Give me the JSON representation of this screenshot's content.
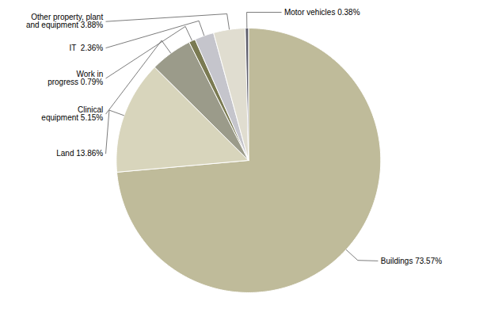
{
  "chart_data": {
    "type": "pie",
    "categories": [
      "Buildings",
      "Land",
      "Clinical equipment",
      "Work in progress",
      "IT",
      "Other property, plant and equipment",
      "Motor vehicles"
    ],
    "values": [
      73.57,
      13.86,
      5.15,
      0.79,
      2.36,
      3.88,
      0.38
    ],
    "colors": [
      "#bfbb9a",
      "#d8d5bc",
      "#9b9b8a",
      "#7a7a52",
      "#c5c5cc",
      "#e0ddd0",
      "#5c5c6a"
    ],
    "value_labels": [
      "Buildings 73.57%",
      "Land 13.86%",
      "Clinical\nequipment 5.15%",
      "Work in\nprogress 0.79%",
      "IT  2.36%",
      "Other property, plant\nand equipment 3.88%",
      "Motor vehicles 0.38%"
    ],
    "data_labels": true
  }
}
